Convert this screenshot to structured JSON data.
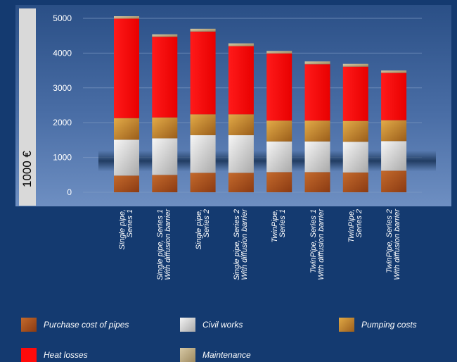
{
  "chart_data": {
    "type": "bar",
    "stacked": true,
    "ylabel": "1000 €",
    "ylim": [
      0,
      5000
    ],
    "yticks": [
      "0",
      "1000",
      "2000",
      "3000",
      "4000",
      "5000"
    ],
    "grid": true,
    "legend_position": "bottom",
    "categories": [
      "Single pipe,\nSeries 1",
      "Single pipe, Series 1\nWith diffusion barrier",
      "Single pipe,\nSeries 2",
      "Single pipe, Series 2\nWith diffusion barrier",
      "TwinPipe,\nSeries 1",
      "TwinPipe, Series 1\nWith diffusion barrier",
      "TwinPipe,\nSeries 2",
      "TwinPipe, Series 2\nWith diffusion barrier"
    ],
    "series": [
      {
        "name": "Purchase cost of pipes",
        "color": "#a8501c",
        "values": [
          480,
          500,
          560,
          560,
          580,
          580,
          570,
          620
        ]
      },
      {
        "name": "Civil works",
        "color": "#dcdcdc",
        "values": [
          1030,
          1050,
          1080,
          1080,
          880,
          880,
          880,
          850
        ]
      },
      {
        "name": "Pumping costs",
        "color": "#c8892e",
        "values": [
          620,
          600,
          600,
          600,
          600,
          600,
          600,
          600
        ]
      },
      {
        "name": "Heat losses",
        "color": "#ff0b0b",
        "values": [
          2860,
          2320,
          2380,
          1960,
          1930,
          1620,
          1560,
          1360
        ]
      },
      {
        "name": "Maintenance",
        "color": "#c9b48a",
        "values": [
          70,
          70,
          80,
          80,
          70,
          80,
          80,
          70
        ]
      }
    ]
  },
  "legend": [
    {
      "label": "Purchase cost of pipes",
      "icon": "pipe-cost-swatch",
      "color": "#a8501c"
    },
    {
      "label": "Civil works",
      "icon": "civil-works-swatch",
      "color": "#dcdcdc"
    },
    {
      "label": "Pumping costs",
      "icon": "pumping-swatch",
      "color": "#c8892e"
    },
    {
      "label": "Heat losses",
      "icon": "heat-loss-swatch",
      "color": "#ff0b0b"
    },
    {
      "label": "Maintenance",
      "icon": "maintenance-swatch",
      "color": "#c9b48a"
    }
  ]
}
